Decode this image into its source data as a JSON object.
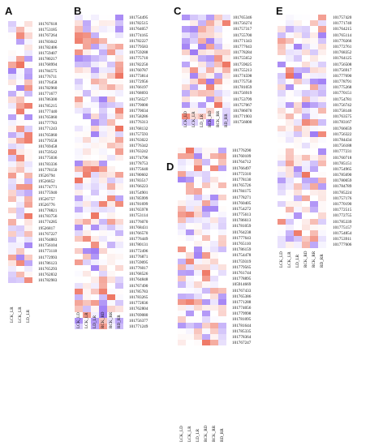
{
  "panels": {
    "A": {
      "label": "A",
      "columns": [
        "LCK_LR",
        "LCK_LR",
        "LD_LR"
      ],
      "ids": [
        "101767618",
        "101753185",
        "101767264",
        "101783042",
        "101782406",
        "101759407",
        "101780217",
        "101768994",
        "101784575",
        "101776711",
        "101776458",
        "101782960",
        "101771677",
        "101786300",
        "101785215",
        "101777440",
        "101765060",
        "101777783",
        "101771243",
        "101765060",
        "101779558",
        "101769458",
        "101759542",
        "101775036",
        "101783336",
        "101778150",
        "19526794",
        "19526852",
        "101774771",
        "101775940",
        "19526757",
        "19526776",
        "101778821",
        "101783756",
        "101774285",
        "19526817",
        "101767227",
        "101764883",
        "101756104",
        "101773118",
        "101772993",
        "101786123",
        "101765293",
        "101762832",
        "101782983"
      ]
    },
    "B": {
      "label": "B",
      "columns": [
        "LCK_LD",
        "LCK_LR",
        "LD_LR",
        "RCK_RD",
        "RCK_RR",
        "RD_RR"
      ],
      "ids": [
        "101754495",
        "101782515",
        "101764057",
        "101774165",
        "101782227",
        "101779583",
        "101759288",
        "101775710",
        "101782250",
        "101760787",
        "101773814",
        "101772956",
        "101766197",
        "101768693",
        "101756527",
        "101770000",
        "101770034",
        "101758286",
        "101776313",
        "101768132",
        "101757593",
        "101763022",
        "101776342",
        "101763242",
        "101774796",
        "101778753",
        "101775640",
        "101780602",
        "101783517",
        "101766223",
        "101754901",
        "101785999",
        "101781699",
        "101765978",
        "101753114",
        "101776070",
        "101768431",
        "101766570",
        "101776449",
        "101780131",
        "101772496",
        "101776871",
        "101759095",
        "101776017",
        "101768526",
        "101764848",
        "101767490",
        "101785783",
        "101783265",
        "101772836",
        "101762804",
        "101769080",
        "101756377",
        "101771249"
      ]
    },
    "C": {
      "label": "C",
      "columns": [
        "LCK_LD",
        "LCK_LR",
        "LD_LR",
        "RCK_RD",
        "RCK_RR",
        "RD_RR"
      ],
      "ids": [
        "101765346",
        "101756274",
        "101757317",
        "101755700",
        "101771343",
        "101777643",
        "101778284",
        "101755652",
        "101759025",
        "101755213",
        "101774598",
        "101775750",
        "101781059",
        "101756919",
        "101753799",
        "101757067",
        "101786070",
        "101771903",
        "101756000"
      ]
    },
    "D": {
      "label": "D",
      "columns": [
        "LCK_LD",
        "LCK_LR",
        "LD_LR",
        "RCK_RD",
        "RCK_RR",
        "RD_RR"
      ],
      "ids": [
        "101776290",
        "101760109",
        "101764712",
        "101766497",
        "101772310",
        "101778130",
        "101765726",
        "101784175",
        "101778271",
        "101760405",
        "101754272",
        "101775613",
        "101786613",
        "101781059",
        "101764238",
        "101777643",
        "101765110",
        "101786159",
        "101754478",
        "101759319",
        "101779565",
        "101761744",
        "101778895",
        "105914669",
        "101767433",
        "101765386",
        "101771288",
        "101774056",
        "101779998",
        "101781095",
        "101781644",
        "101785335",
        "101778364",
        "101767247"
      ]
    },
    "E": {
      "label": "E",
      "columns": [
        "LCK_LD",
        "LCK_LR",
        "LD_LR",
        "RCK_RD",
        "RCK_RR",
        "RD_RR"
      ],
      "ids": [
        "101757420",
        "101771740",
        "101764215",
        "101765114",
        "101770266",
        "101772761",
        "101768352",
        "101764125",
        "101756508",
        "101756917",
        "101777690",
        "101778791",
        "101775268",
        "101770151",
        "101754781",
        "101756742",
        "101758146",
        "101763575",
        "101783167",
        "101766659",
        "101756322",
        "101784434",
        "101756188",
        "101777231",
        "101760718",
        "101785151",
        "101754965",
        "101785690",
        "101780059",
        "101784789",
        "101785224",
        "101757176",
        "101770190",
        "101772515",
        "101772755",
        "101785339",
        "101775157",
        "101754854",
        "101753911",
        "101777606"
      ]
    }
  },
  "colors": {
    "high": "#e8452c",
    "low": "#7b4df0",
    "mid": "#ffffff",
    "missing": "#b0b0b0"
  }
}
